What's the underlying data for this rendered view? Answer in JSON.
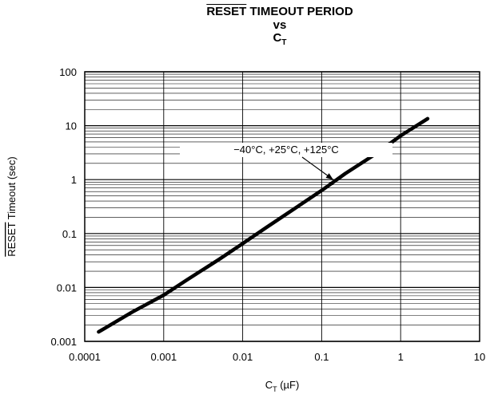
{
  "chart_data": {
    "type": "line",
    "title_line1_over": "RESET",
    "title_line1_rest": " TIMEOUT PERIOD",
    "title_line2": "vs",
    "title_line3_main": "C",
    "title_line3_sub": "T",
    "xlabel_main": "C",
    "xlabel_sub": "T",
    "xlabel_rest": " (µF)",
    "ylabel_over": "RESET",
    "ylabel_rest": " Timeout (sec)",
    "xscale": "log",
    "yscale": "log",
    "xlim": [
      0.0001,
      10
    ],
    "ylim": [
      0.001,
      100
    ],
    "xticks": [
      {
        "value": 0.0001,
        "label": "0.0001"
      },
      {
        "value": 0.001,
        "label": "0.001"
      },
      {
        "value": 0.01,
        "label": "0.01"
      },
      {
        "value": 0.1,
        "label": "0.1"
      },
      {
        "value": 1,
        "label": "1"
      },
      {
        "value": 10,
        "label": "10"
      }
    ],
    "yticks": [
      {
        "value": 0.001,
        "label": "0.001"
      },
      {
        "value": 0.01,
        "label": "0.01"
      },
      {
        "value": 0.1,
        "label": "0.1"
      },
      {
        "value": 1,
        "label": "1"
      },
      {
        "value": 10,
        "label": "10"
      },
      {
        "value": 100,
        "label": "100"
      }
    ],
    "grid": true,
    "series": [
      {
        "x": [
          0.00015,
          0.0004,
          0.001,
          0.002,
          0.005,
          0.01,
          0.02,
          0.05,
          0.1,
          0.2,
          0.5,
          1,
          2.2
        ],
        "y": [
          0.0015,
          0.0035,
          0.0072,
          0.014,
          0.033,
          0.065,
          0.13,
          0.32,
          0.63,
          1.3,
          3.1,
          6.5,
          13.5
        ]
      }
    ],
    "annotation": "−40°C, +25°C, +125°C",
    "line_color": "#000000"
  }
}
